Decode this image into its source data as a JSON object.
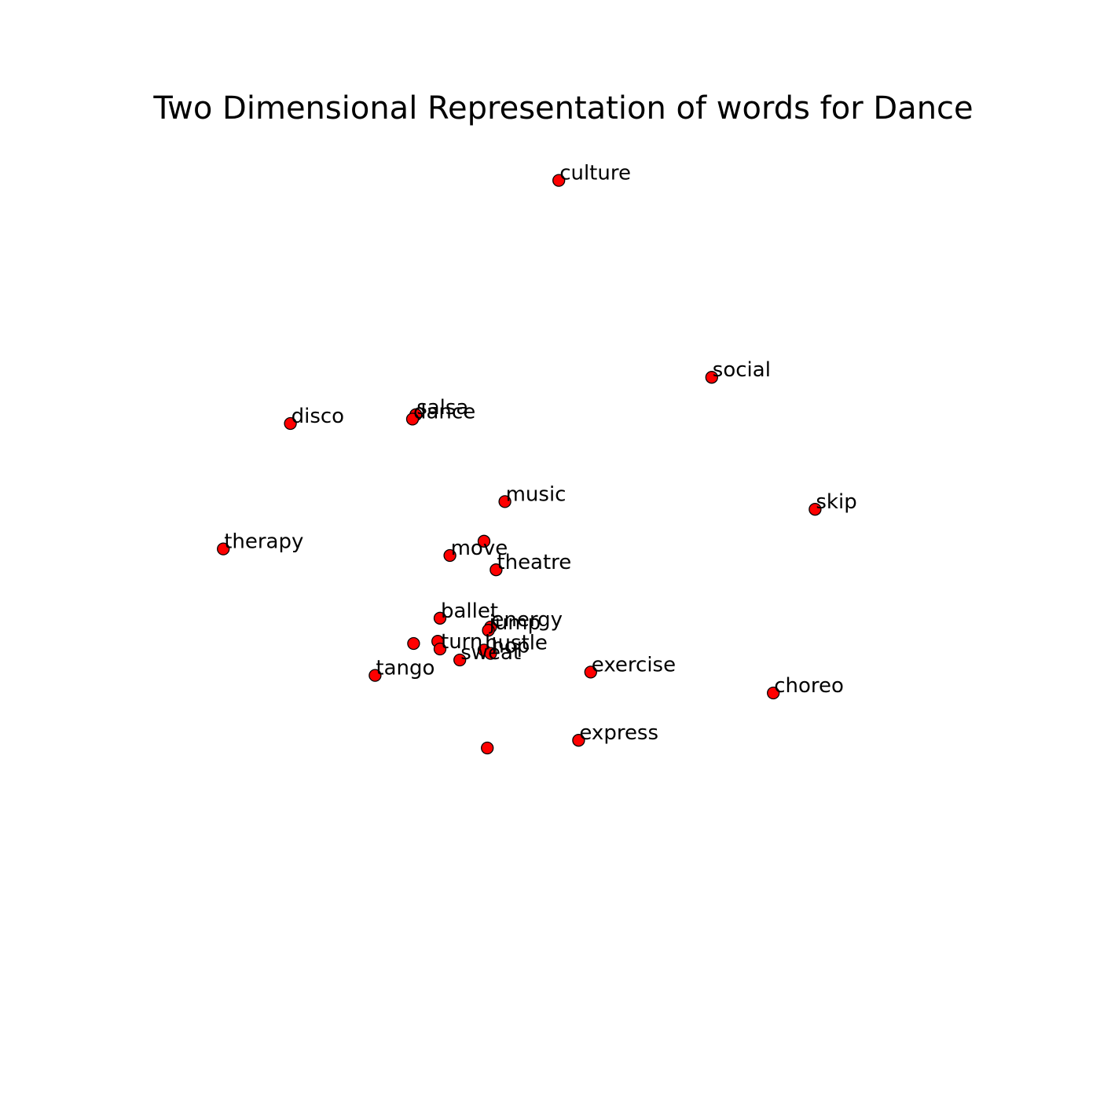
{
  "chart_data": {
    "type": "scatter",
    "title": "Two Dimensional Representation of words for Dance",
    "xlabel": "",
    "ylabel": "",
    "axes_visible": false,
    "grid": false,
    "marker_color": "#ff0000",
    "marker_edge_color": "#000000",
    "label_color": "#000000",
    "xlim": [
      0,
      1000
    ],
    "ylim": [
      0,
      1000
    ],
    "points": [
      {
        "label": "culture",
        "x": 508,
        "y": 836
      },
      {
        "label": "social",
        "x": 647,
        "y": 657
      },
      {
        "label": "salsa",
        "x": 378,
        "y": 623
      },
      {
        "label": "dance",
        "x": 375,
        "y": 619
      },
      {
        "label": "disco",
        "x": 264,
        "y": 615
      },
      {
        "label": "music",
        "x": 459,
        "y": 544
      },
      {
        "label": "skip",
        "x": 741,
        "y": 537
      },
      {
        "label": "",
        "x": 440,
        "y": 508
      },
      {
        "label": "therapy",
        "x": 203,
        "y": 501
      },
      {
        "label": "move",
        "x": 409,
        "y": 495
      },
      {
        "label": "theatre",
        "x": 451,
        "y": 482
      },
      {
        "label": "ballet",
        "x": 400,
        "y": 438
      },
      {
        "label": "energy",
        "x": 446,
        "y": 430
      },
      {
        "label": "jump",
        "x": 444,
        "y": 427
      },
      {
        "label": "",
        "x": 376,
        "y": 415
      },
      {
        "label": "",
        "x": 398,
        "y": 417
      },
      {
        "label": "turn",
        "x": 400,
        "y": 410
      },
      {
        "label": "hustle",
        "x": 440,
        "y": 409
      },
      {
        "label": "hop",
        "x": 446,
        "y": 406
      },
      {
        "label": "sweat",
        "x": 418,
        "y": 400
      },
      {
        "label": "tango",
        "x": 341,
        "y": 386
      },
      {
        "label": "exercise",
        "x": 537,
        "y": 389
      },
      {
        "label": "choreo",
        "x": 703,
        "y": 370
      },
      {
        "label": "express",
        "x": 526,
        "y": 327
      },
      {
        "label": "",
        "x": 443,
        "y": 320
      }
    ]
  }
}
